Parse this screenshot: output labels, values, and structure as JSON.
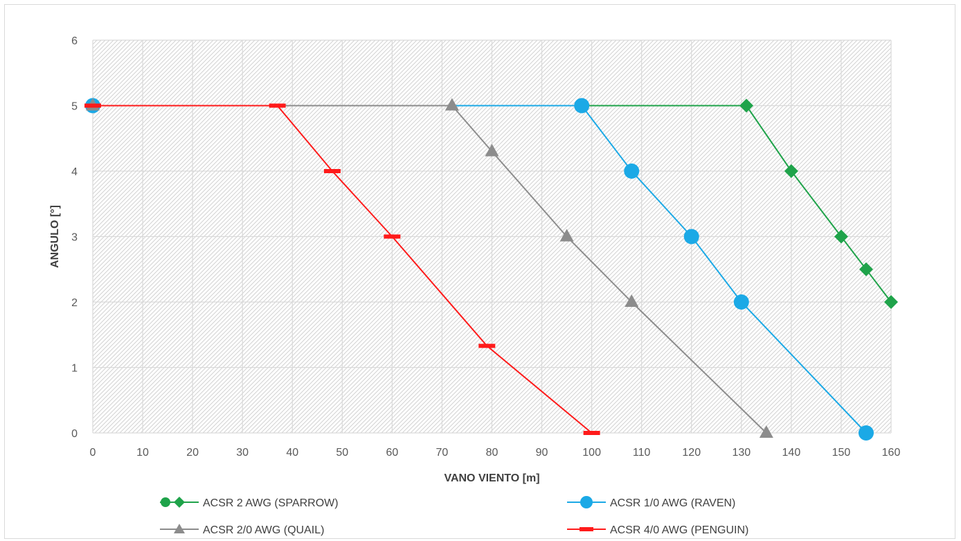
{
  "chart_data": {
    "type": "line",
    "xlabel": "VANO VIENTO [m]",
    "ylabel": "ANGULO [°]",
    "xlim": [
      0,
      160
    ],
    "ylim": [
      0,
      6
    ],
    "x_ticks": [
      0,
      10,
      20,
      30,
      40,
      50,
      60,
      70,
      80,
      90,
      100,
      110,
      120,
      130,
      140,
      150,
      160
    ],
    "y_ticks": [
      0,
      1,
      2,
      3,
      4,
      5,
      6
    ],
    "grid": true,
    "legend_position": "bottom",
    "series": [
      {
        "name": "ACSR 2 AWG (SPARROW)",
        "color": "#1fa34a",
        "marker": "diamond",
        "legend_marker": "circle+diamond",
        "points": [
          [
            0,
            5
          ],
          [
            131,
            5
          ],
          [
            140,
            4
          ],
          [
            150,
            3
          ],
          [
            155,
            2.5
          ],
          [
            160,
            2
          ]
        ]
      },
      {
        "name": "ACSR 1/0 AWG (RAVEN)",
        "color": "#1ba9e6",
        "marker": "circle",
        "legend_marker": "circle",
        "points": [
          [
            0,
            5
          ],
          [
            98,
            5
          ],
          [
            108,
            4
          ],
          [
            120,
            3
          ],
          [
            130,
            2
          ],
          [
            155,
            0
          ]
        ]
      },
      {
        "name": "ACSR 2/0 AWG (QUAIL)",
        "color": "#8c8c8c",
        "marker": "triangle",
        "legend_marker": "triangle",
        "points": [
          [
            0,
            5
          ],
          [
            72,
            5
          ],
          [
            80,
            4.3
          ],
          [
            95,
            3
          ],
          [
            108,
            2
          ],
          [
            135,
            0
          ]
        ]
      },
      {
        "name": "ACSR 4/0 AWG (PENGUIN)",
        "color": "#ff1a1a",
        "marker": "dash",
        "legend_marker": "dash",
        "points": [
          [
            0,
            5
          ],
          [
            37,
            5
          ],
          [
            48,
            4
          ],
          [
            60,
            3
          ],
          [
            79,
            1.33
          ],
          [
            100,
            0
          ]
        ]
      }
    ]
  }
}
